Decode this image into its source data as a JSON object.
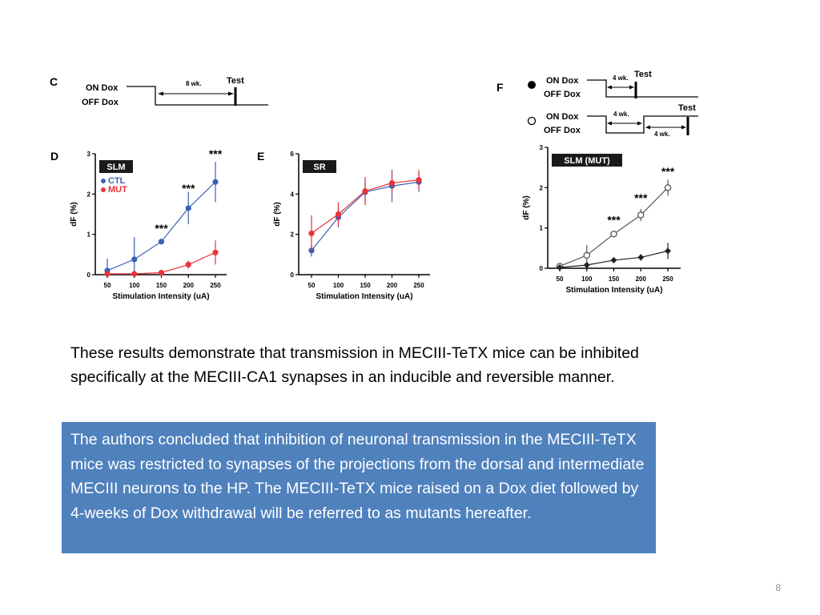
{
  "figure": {
    "panel_c": {
      "letter": "C",
      "on_label": "ON Dox",
      "off_label": "OFF Dox",
      "duration": "8 wk.",
      "test": "Test"
    },
    "panel_f": {
      "letter": "F",
      "row1": {
        "on_label": "ON Dox",
        "off_label": "OFF Dox",
        "duration": "4 wk.",
        "test": "Test"
      },
      "row2": {
        "on_label": "ON Dox",
        "off_label": "OFF Dox",
        "duration1": "4 wk.",
        "duration2": "4 wk.",
        "test": "Test"
      }
    }
  },
  "chart_data": [
    {
      "panel": "D",
      "type": "line",
      "badge": "SLM",
      "xlabel": "Stimulation Intensity (uA)",
      "ylabel": "dF (%)",
      "x": [
        50,
        100,
        150,
        200,
        250
      ],
      "xlim": [
        50,
        250
      ],
      "ylim": [
        0,
        3
      ],
      "yticks": [
        0,
        1,
        2,
        3
      ],
      "legend_position": "upper-left",
      "series": [
        {
          "name": "CTL",
          "color": "#3d5fb5",
          "marker": "filled-circle",
          "values": [
            0.1,
            0.38,
            0.82,
            1.65,
            2.3
          ],
          "errors": [
            0.3,
            0.55,
            0.05,
            0.4,
            0.5
          ]
        },
        {
          "name": "MUT",
          "color": "#e8343a",
          "marker": "filled-circle",
          "values": [
            0.02,
            0.02,
            0.05,
            0.25,
            0.55
          ],
          "errors": [
            0.05,
            0.05,
            0.05,
            0.1,
            0.3
          ]
        }
      ],
      "annotations": [
        {
          "x": 150,
          "y": 1.05,
          "text": "***"
        },
        {
          "x": 200,
          "y": 2.05,
          "text": "***"
        },
        {
          "x": 250,
          "y": 2.9,
          "text": "***"
        }
      ]
    },
    {
      "panel": "E",
      "type": "line",
      "badge": "SR",
      "xlabel": "Stimulation Intensity (uA)",
      "ylabel": "dF (%)",
      "x": [
        50,
        100,
        150,
        200,
        250
      ],
      "xlim": [
        50,
        250
      ],
      "ylim": [
        0,
        6
      ],
      "yticks": [
        0,
        2,
        4,
        6
      ],
      "series": [
        {
          "name": "CTL",
          "color": "#3d5fb5",
          "marker": "filled-circle",
          "values": [
            1.2,
            2.85,
            4.1,
            4.4,
            4.6
          ],
          "errors": [
            0.3,
            0.5,
            0.6,
            0.8,
            0.5
          ]
        },
        {
          "name": "MUT",
          "color": "#e8343a",
          "marker": "filled-circle",
          "values": [
            2.05,
            3.0,
            4.15,
            4.55,
            4.7
          ],
          "errors": [
            0.9,
            0.6,
            0.7,
            0.5,
            0.5
          ]
        }
      ]
    },
    {
      "panel": "F",
      "type": "line",
      "badge": "SLM (MUT)",
      "xlabel": "Stimulation Intensity (uA)",
      "ylabel": "dF (%)",
      "x": [
        50,
        100,
        150,
        200,
        250
      ],
      "xlim": [
        50,
        250
      ],
      "ylim": [
        0,
        3
      ],
      "yticks": [
        0,
        1,
        2,
        3
      ],
      "series": [
        {
          "name": "",
          "color": "#555555",
          "marker": "open-circle",
          "values": [
            0.05,
            0.32,
            0.85,
            1.32,
            2.0
          ],
          "errors": [
            0.05,
            0.25,
            0.05,
            0.15,
            0.2
          ]
        },
        {
          "name": "",
          "color": "#222222",
          "marker": "filled-diamond",
          "values": [
            0.02,
            0.08,
            0.2,
            0.27,
            0.43
          ],
          "errors": [
            0.03,
            0.05,
            0.05,
            0.08,
            0.2
          ]
        }
      ],
      "annotations": [
        {
          "x": 150,
          "y": 1.1,
          "text": "***"
        },
        {
          "x": 200,
          "y": 1.65,
          "text": "***"
        },
        {
          "x": 250,
          "y": 2.3,
          "text": "***"
        }
      ]
    }
  ],
  "text": {
    "paragraph": "These results demonstrate that transmission in MECIII-TeTX mice can be inhibited specifically at the MECIII-CA1 synapses in an inducible and reversible manner.",
    "box_paragraph": "The authors concluded that inhibition of neuronal transmission in the MECIII-TeTX mice was restricted to synapses of the projections from the dorsal and intermediate MECIII neurons to the HP. The MECIII-TeTX mice raised on a Dox diet followed by 4-weeks of Dox withdrawal will be referred to as mutants hereafter."
  },
  "page_number": "8"
}
